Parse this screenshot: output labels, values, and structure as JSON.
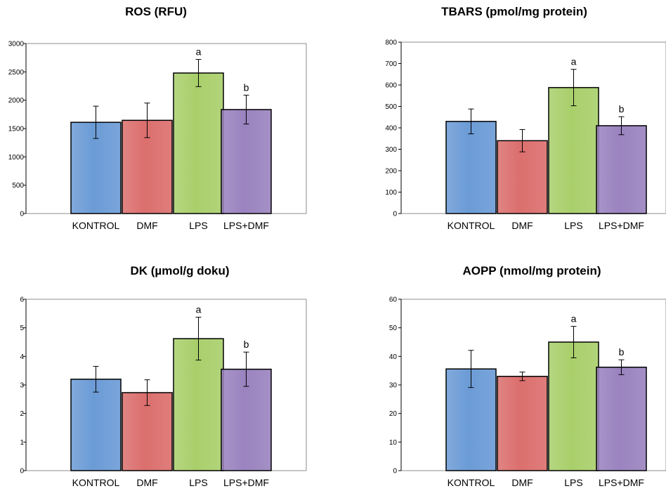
{
  "colors": {
    "KONTROL": "#6b9bd6",
    "DMF": "#db6f6d",
    "LPS": "#a9cf6b",
    "LPS+DMF": "#9a83bf",
    "bar_outline": "#000000",
    "plot_border": "#8c8c8c"
  },
  "chart_data": [
    {
      "type": "bar",
      "title": "ROS (RFU)",
      "categories": [
        "KONTROL",
        "DMF",
        "LPS",
        "LPS+DMF"
      ],
      "values": [
        1610,
        1645,
        2480,
        1835
      ],
      "errors": [
        285,
        305,
        240,
        255
      ],
      "significance": [
        "",
        "",
        "a",
        "b"
      ],
      "ylim": [
        0,
        3000
      ],
      "yticks": [
        0,
        500,
        1000,
        1500,
        2000,
        2500,
        3000
      ],
      "xlabel": "",
      "ylabel": "",
      "grid": false,
      "legend": "none"
    },
    {
      "type": "bar",
      "title": "TBARS (pmol/mg protein)",
      "categories": [
        "KONTROL",
        "DMF",
        "LPS",
        "LPS+DMF"
      ],
      "values": [
        430,
        340,
        588,
        410
      ],
      "errors": [
        58,
        52,
        85,
        42
      ],
      "significance": [
        "",
        "",
        "a",
        "b"
      ],
      "ylim": [
        0,
        800
      ],
      "yticks": [
        0,
        100,
        200,
        300,
        400,
        500,
        600,
        700,
        800
      ],
      "xlabel": "",
      "ylabel": "",
      "grid": false,
      "legend": "none"
    },
    {
      "type": "bar",
      "title": "DK (µmol/g doku)",
      "categories": [
        "KONTROL",
        "DMF",
        "LPS",
        "LPS+DMF"
      ],
      "values": [
        3.2,
        2.73,
        4.62,
        3.55
      ],
      "errors": [
        0.45,
        0.45,
        0.75,
        0.6
      ],
      "significance": [
        "",
        "",
        "a",
        "b"
      ],
      "ylim": [
        0,
        6
      ],
      "yticks": [
        0,
        1,
        2,
        3,
        4,
        5,
        6
      ],
      "xlabel": "",
      "ylabel": "",
      "grid": false,
      "legend": "none"
    },
    {
      "type": "bar",
      "title": "AOPP (nmol/mg protein)",
      "categories": [
        "KONTROL",
        "DMF",
        "LPS",
        "LPS+DMF"
      ],
      "values": [
        35.6,
        33.0,
        45.0,
        36.2
      ],
      "errors": [
        6.5,
        1.5,
        5.5,
        2.6
      ],
      "significance": [
        "",
        "",
        "a",
        "b"
      ],
      "ylim": [
        0,
        60
      ],
      "yticks": [
        0,
        10,
        20,
        30,
        40,
        50,
        60
      ],
      "xlabel": "",
      "ylabel": "",
      "grid": false,
      "legend": "none"
    }
  ]
}
